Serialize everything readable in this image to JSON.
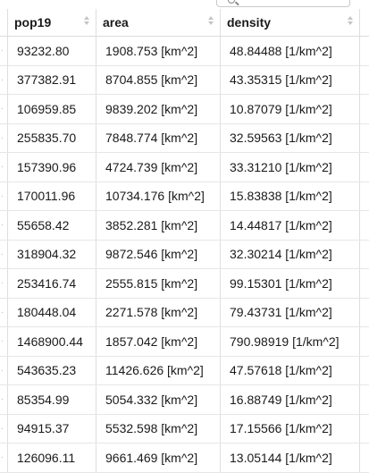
{
  "search": {
    "placeholder": ""
  },
  "columns": [
    {
      "label": "pop19"
    },
    {
      "label": "area"
    },
    {
      "label": "density"
    }
  ],
  "rows": [
    [
      "93232.80",
      "1908.753 [km^2]",
      "48.84488 [1/km^2]"
    ],
    [
      "377382.91",
      "8704.855 [km^2]",
      "43.35315 [1/km^2]"
    ],
    [
      "106959.85",
      "9839.202 [km^2]",
      "10.87079 [1/km^2]"
    ],
    [
      "255835.70",
      "7848.774 [km^2]",
      "32.59563 [1/km^2]"
    ],
    [
      "157390.96",
      "4724.739 [km^2]",
      "33.31210 [1/km^2]"
    ],
    [
      "170011.96",
      "10734.176 [km^2]",
      "15.83838 [1/km^2]"
    ],
    [
      "55658.42",
      "3852.281 [km^2]",
      "14.44817 [1/km^2]"
    ],
    [
      "318904.32",
      "9872.546 [km^2]",
      "32.30214 [1/km^2]"
    ],
    [
      "253416.74",
      "2555.815 [km^2]",
      "99.15301 [1/km^2]"
    ],
    [
      "180448.04",
      "2271.578 [km^2]",
      "79.43731 [1/km^2]"
    ],
    [
      "1468900.44",
      "1857.042 [km^2]",
      "790.98919 [1/km^2]"
    ],
    [
      "543635.23",
      "11426.626 [km^2]",
      "47.57618 [1/km^2]"
    ],
    [
      "85354.99",
      "5054.332 [km^2]",
      "16.88749 [1/km^2]"
    ],
    [
      "94915.37",
      "5532.598 [km^2]",
      "17.15566 [1/km^2]"
    ],
    [
      "126096.11",
      "9661.469 [km^2]",
      "13.05144 [1/km^2]"
    ]
  ]
}
